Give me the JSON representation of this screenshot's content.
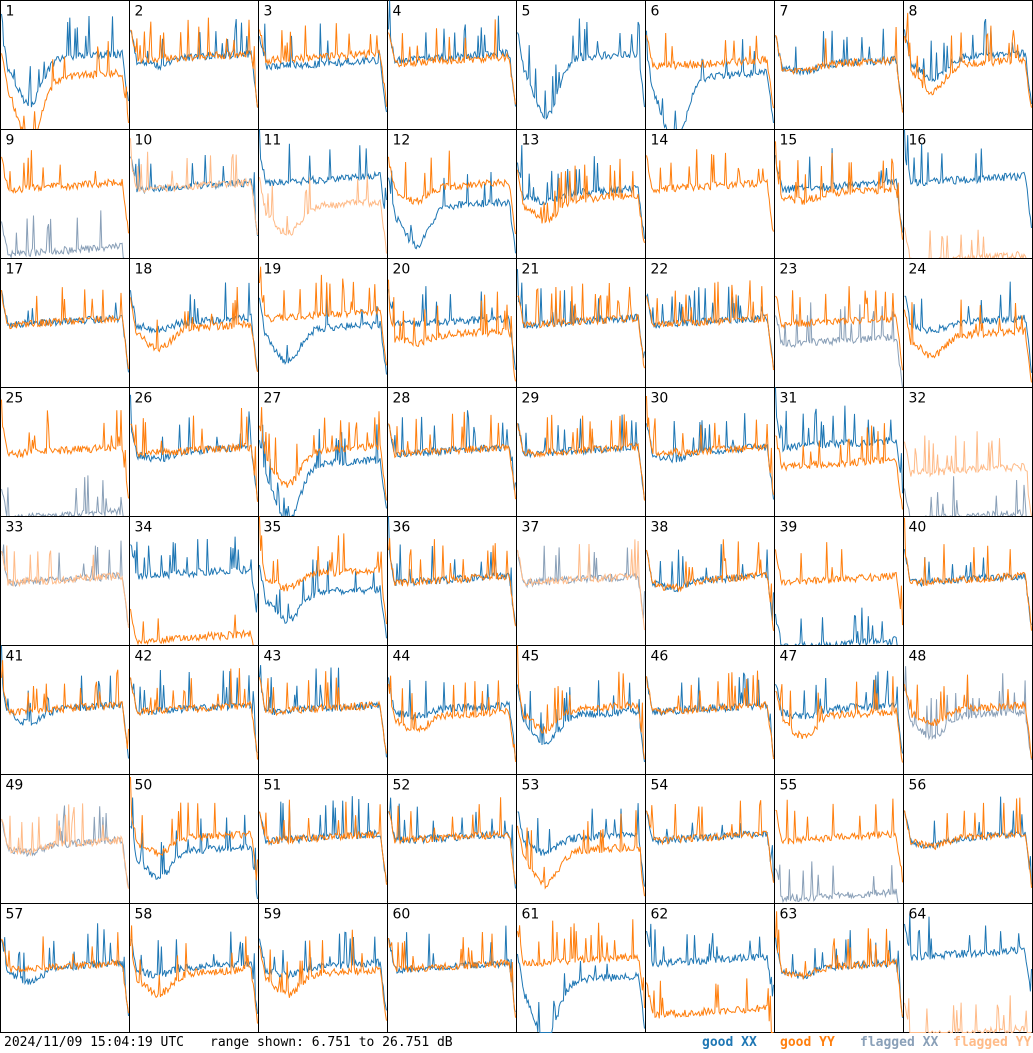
{
  "footer": {
    "timestamp": "2024/11/09 15:04:19 UTC",
    "range_text": "range shown: 6.751 to 26.751 dB"
  },
  "legend": {
    "good_xx": "good XX",
    "good_yy": "good YY",
    "flagged_xx": "flagged XX",
    "flagged_yy": "flagged YY"
  },
  "colors": {
    "good_xx": "#1f77b4",
    "good_yy": "#ff7f0e",
    "flagged_xx": "#8aa0b8",
    "flagged_yy": "#ffbb88"
  },
  "chart_data": {
    "type": "line",
    "ylim": [
      6.751,
      26.751
    ],
    "y_unit": "dB",
    "panels": [
      {
        "n": "1",
        "xx": {
          "level": 18,
          "dip": 7,
          "state": "good"
        },
        "yy": {
          "level": 15,
          "dip": 10,
          "state": "good"
        }
      },
      {
        "n": "2",
        "xx": {
          "level": 18,
          "dip": 1,
          "state": "good"
        },
        "yy": {
          "level": 18,
          "dip": 0,
          "state": "good"
        }
      },
      {
        "n": "3",
        "xx": {
          "level": 17,
          "dip": 0,
          "state": "good"
        },
        "yy": {
          "level": 18,
          "dip": 0,
          "state": "good"
        }
      },
      {
        "n": "4",
        "xx": {
          "level": 18,
          "dip": 0,
          "state": "good"
        },
        "yy": {
          "level": 17.5,
          "dip": 0,
          "state": "good"
        }
      },
      {
        "n": "5",
        "xx": {
          "level": 18,
          "dip": 9,
          "state": "good"
        },
        "yy": {
          "level": 18,
          "dip": 0,
          "state": "missing"
        }
      },
      {
        "n": "6",
        "xx": {
          "level": 15,
          "dip": 10,
          "state": "good"
        },
        "yy": {
          "level": 17,
          "dip": 0,
          "state": "good"
        }
      },
      {
        "n": "7",
        "xx": {
          "level": 17,
          "dip": 1,
          "state": "good"
        },
        "yy": {
          "level": 17,
          "dip": 1,
          "state": "good"
        }
      },
      {
        "n": "8",
        "xx": {
          "level": 18,
          "dip": 3,
          "state": "good"
        },
        "yy": {
          "level": 17,
          "dip": 4,
          "state": "good"
        }
      },
      {
        "n": "9",
        "xx": {
          "level": 8,
          "dip": 0,
          "state": "flagged"
        },
        "yy": {
          "level": 18,
          "dip": 0,
          "state": "good"
        }
      },
      {
        "n": "10",
        "xx": {
          "level": 18,
          "dip": 0,
          "state": "good"
        },
        "yy": {
          "level": 18,
          "dip": 0,
          "state": "flagged"
        }
      },
      {
        "n": "11",
        "xx": {
          "level": 19,
          "dip": 0,
          "state": "good"
        },
        "yy": {
          "level": 15,
          "dip": 4,
          "state": "flagged"
        }
      },
      {
        "n": "12",
        "xx": {
          "level": 15,
          "dip": 6,
          "state": "good"
        },
        "yy": {
          "level": 18,
          "dip": 2,
          "state": "good"
        }
      },
      {
        "n": "13",
        "xx": {
          "level": 17,
          "dip": 1,
          "state": "good"
        },
        "yy": {
          "level": 16,
          "dip": 3,
          "state": "good"
        }
      },
      {
        "n": "14",
        "xx": {
          "level": 18,
          "dip": 0,
          "state": "missing"
        },
        "yy": {
          "level": 18,
          "dip": 0,
          "state": "good"
        }
      },
      {
        "n": "15",
        "xx": {
          "level": 18,
          "dip": 0,
          "state": "good"
        },
        "yy": {
          "level": 17,
          "dip": 1,
          "state": "good"
        }
      },
      {
        "n": "16",
        "xx": {
          "level": 19,
          "dip": 0,
          "state": "good"
        },
        "yy": {
          "level": 6.751,
          "dip": 0,
          "state": "flagged"
        }
      },
      {
        "n": "17",
        "xx": {
          "level": 17,
          "dip": 0,
          "state": "good"
        },
        "yy": {
          "level": 17,
          "dip": 0,
          "state": "good"
        }
      },
      {
        "n": "18",
        "xx": {
          "level": 17,
          "dip": 1,
          "state": "good"
        },
        "yy": {
          "level": 16,
          "dip": 3,
          "state": "good"
        }
      },
      {
        "n": "19",
        "xx": {
          "level": 16,
          "dip": 5,
          "state": "good"
        },
        "yy": {
          "level": 18,
          "dip": 0,
          "state": "good"
        }
      },
      {
        "n": "20",
        "xx": {
          "level": 17,
          "dip": 0,
          "state": "good"
        },
        "yy": {
          "level": 15,
          "dip": 1,
          "state": "good"
        }
      },
      {
        "n": "21",
        "xx": {
          "level": 17,
          "dip": 0,
          "state": "good"
        },
        "yy": {
          "level": 17,
          "dip": 0,
          "state": "good"
        }
      },
      {
        "n": "22",
        "xx": {
          "level": 17,
          "dip": 0,
          "state": "good"
        },
        "yy": {
          "level": 17,
          "dip": 0,
          "state": "good"
        }
      },
      {
        "n": "23",
        "xx": {
          "level": 14,
          "dip": 0,
          "state": "flagged"
        },
        "yy": {
          "level": 17,
          "dip": 0,
          "state": "good"
        }
      },
      {
        "n": "24",
        "xx": {
          "level": 17,
          "dip": 1,
          "state": "good"
        },
        "yy": {
          "level": 15,
          "dip": 3,
          "state": "good"
        }
      },
      {
        "n": "25",
        "xx": {
          "level": 7,
          "dip": 0,
          "state": "flagged"
        },
        "yy": {
          "level": 17,
          "dip": 0,
          "state": "good"
        }
      },
      {
        "n": "26",
        "xx": {
          "level": 17,
          "dip": 1,
          "state": "good"
        },
        "yy": {
          "level": 17,
          "dip": 0,
          "state": "good"
        }
      },
      {
        "n": "27",
        "xx": {
          "level": 15,
          "dip": 9,
          "state": "good"
        },
        "yy": {
          "level": 17,
          "dip": 5,
          "state": "good"
        }
      },
      {
        "n": "28",
        "xx": {
          "level": 17,
          "dip": 0,
          "state": "good"
        },
        "yy": {
          "level": 17,
          "dip": 0,
          "state": "good"
        }
      },
      {
        "n": "29",
        "xx": {
          "level": 17,
          "dip": 0,
          "state": "good"
        },
        "yy": {
          "level": 17,
          "dip": 0,
          "state": "good"
        }
      },
      {
        "n": "30",
        "xx": {
          "level": 17,
          "dip": 1,
          "state": "good"
        },
        "yy": {
          "level": 17,
          "dip": 0,
          "state": "good"
        }
      },
      {
        "n": "31",
        "xx": {
          "level": 18,
          "dip": 0,
          "state": "good"
        },
        "yy": {
          "level": 15,
          "dip": 0,
          "state": "good"
        }
      },
      {
        "n": "32",
        "xx": {
          "level": 6.751,
          "dip": 0,
          "state": "flagged"
        },
        "yy": {
          "level": 14,
          "dip": 0,
          "state": "flagged"
        }
      },
      {
        "n": "33",
        "xx": {
          "level": 17,
          "dip": 0,
          "state": "flagged"
        },
        "yy": {
          "level": 17,
          "dip": 0,
          "state": "flagged"
        }
      },
      {
        "n": "34",
        "xx": {
          "level": 18,
          "dip": 0,
          "state": "good"
        },
        "yy": {
          "level": 8,
          "dip": 0,
          "state": "good"
        }
      },
      {
        "n": "35",
        "xx": {
          "level": 15,
          "dip": 4,
          "state": "good"
        },
        "yy": {
          "level": 18,
          "dip": 2,
          "state": "good"
        }
      },
      {
        "n": "36",
        "xx": {
          "level": 17,
          "dip": 0,
          "state": "good"
        },
        "yy": {
          "level": 17,
          "dip": 0,
          "state": "good"
        }
      },
      {
        "n": "37",
        "xx": {
          "level": 17,
          "dip": 0,
          "state": "flagged"
        },
        "yy": {
          "level": 17,
          "dip": 0,
          "state": "flagged"
        }
      },
      {
        "n": "38",
        "xx": {
          "level": 17,
          "dip": 1,
          "state": "good"
        },
        "yy": {
          "level": 17,
          "dip": 1,
          "state": "good"
        }
      },
      {
        "n": "39",
        "xx": {
          "level": 7,
          "dip": 0,
          "state": "good"
        },
        "yy": {
          "level": 17,
          "dip": 0,
          "state": "good"
        }
      },
      {
        "n": "40",
        "xx": {
          "level": 17,
          "dip": 0,
          "state": "good"
        },
        "yy": {
          "level": 17,
          "dip": 0,
          "state": "good"
        }
      },
      {
        "n": "41",
        "xx": {
          "level": 17,
          "dip": 2,
          "state": "good"
        },
        "yy": {
          "level": 17,
          "dip": 0,
          "state": "good"
        }
      },
      {
        "n": "42",
        "xx": {
          "level": 17,
          "dip": 0,
          "state": "good"
        },
        "yy": {
          "level": 17,
          "dip": 0,
          "state": "good"
        }
      },
      {
        "n": "43",
        "xx": {
          "level": 17,
          "dip": 0,
          "state": "good"
        },
        "yy": {
          "level": 17,
          "dip": 0,
          "state": "good"
        }
      },
      {
        "n": "44",
        "xx": {
          "level": 17,
          "dip": 1,
          "state": "good"
        },
        "yy": {
          "level": 16,
          "dip": 2,
          "state": "good"
        }
      },
      {
        "n": "45",
        "xx": {
          "level": 16,
          "dip": 4,
          "state": "good"
        },
        "yy": {
          "level": 17,
          "dip": 3,
          "state": "good"
        }
      },
      {
        "n": "46",
        "xx": {
          "level": 17,
          "dip": 0,
          "state": "good"
        },
        "yy": {
          "level": 17,
          "dip": 0,
          "state": "good"
        }
      },
      {
        "n": "47",
        "xx": {
          "level": 17,
          "dip": 1,
          "state": "good"
        },
        "yy": {
          "level": 16,
          "dip": 3,
          "state": "good"
        }
      },
      {
        "n": "48",
        "xx": {
          "level": 16,
          "dip": 3,
          "state": "flagged"
        },
        "yy": {
          "level": 17,
          "dip": 2,
          "state": "good"
        }
      },
      {
        "n": "49",
        "xx": {
          "level": 16,
          "dip": 1,
          "state": "flagged"
        },
        "yy": {
          "level": 16,
          "dip": 1,
          "state": "flagged"
        }
      },
      {
        "n": "50",
        "xx": {
          "level": 15,
          "dip": 4,
          "state": "good"
        },
        "yy": {
          "level": 17,
          "dip": 2,
          "state": "good"
        }
      },
      {
        "n": "51",
        "xx": {
          "level": 17,
          "dip": 0,
          "state": "good"
        },
        "yy": {
          "level": 17,
          "dip": 0,
          "state": "good"
        }
      },
      {
        "n": "52",
        "xx": {
          "level": 17,
          "dip": 0,
          "state": "good"
        },
        "yy": {
          "level": 17,
          "dip": 0,
          "state": "good"
        }
      },
      {
        "n": "53",
        "xx": {
          "level": 17,
          "dip": 2,
          "state": "good"
        },
        "yy": {
          "level": 15,
          "dip": 5,
          "state": "good"
        }
      },
      {
        "n": "54",
        "xx": {
          "level": 17,
          "dip": 0,
          "state": "good"
        },
        "yy": {
          "level": 17,
          "dip": 0,
          "state": "good"
        }
      },
      {
        "n": "55",
        "xx": {
          "level": 8,
          "dip": 0,
          "state": "flagged"
        },
        "yy": {
          "level": 17,
          "dip": 0,
          "state": "good"
        }
      },
      {
        "n": "56",
        "xx": {
          "level": 17,
          "dip": 1,
          "state": "good"
        },
        "yy": {
          "level": 17,
          "dip": 1,
          "state": "good"
        }
      },
      {
        "n": "57",
        "xx": {
          "level": 17,
          "dip": 2,
          "state": "good"
        },
        "yy": {
          "level": 17,
          "dip": 0,
          "state": "good"
        }
      },
      {
        "n": "58",
        "xx": {
          "level": 17,
          "dip": 1,
          "state": "good"
        },
        "yy": {
          "level": 16,
          "dip": 3,
          "state": "good"
        }
      },
      {
        "n": "59",
        "xx": {
          "level": 17,
          "dip": 1,
          "state": "good"
        },
        "yy": {
          "level": 16,
          "dip": 3,
          "state": "good"
        }
      },
      {
        "n": "60",
        "xx": {
          "level": 17,
          "dip": 0,
          "state": "good"
        },
        "yy": {
          "level": 17,
          "dip": 0,
          "state": "good"
        }
      },
      {
        "n": "61",
        "xx": {
          "level": 15,
          "dip": 9,
          "state": "good"
        },
        "yy": {
          "level": 18,
          "dip": 0,
          "state": "good"
        }
      },
      {
        "n": "62",
        "xx": {
          "level": 18,
          "dip": 0,
          "state": "good"
        },
        "yy": {
          "level": 10,
          "dip": 0,
          "state": "good"
        }
      },
      {
        "n": "63",
        "xx": {
          "level": 17,
          "dip": 1,
          "state": "good"
        },
        "yy": {
          "level": 17,
          "dip": 1,
          "state": "good"
        }
      },
      {
        "n": "64",
        "xx": {
          "level": 19,
          "dip": 0,
          "state": "good"
        },
        "yy": {
          "level": 6.751,
          "dip": 0,
          "state": "flagged"
        }
      }
    ]
  }
}
